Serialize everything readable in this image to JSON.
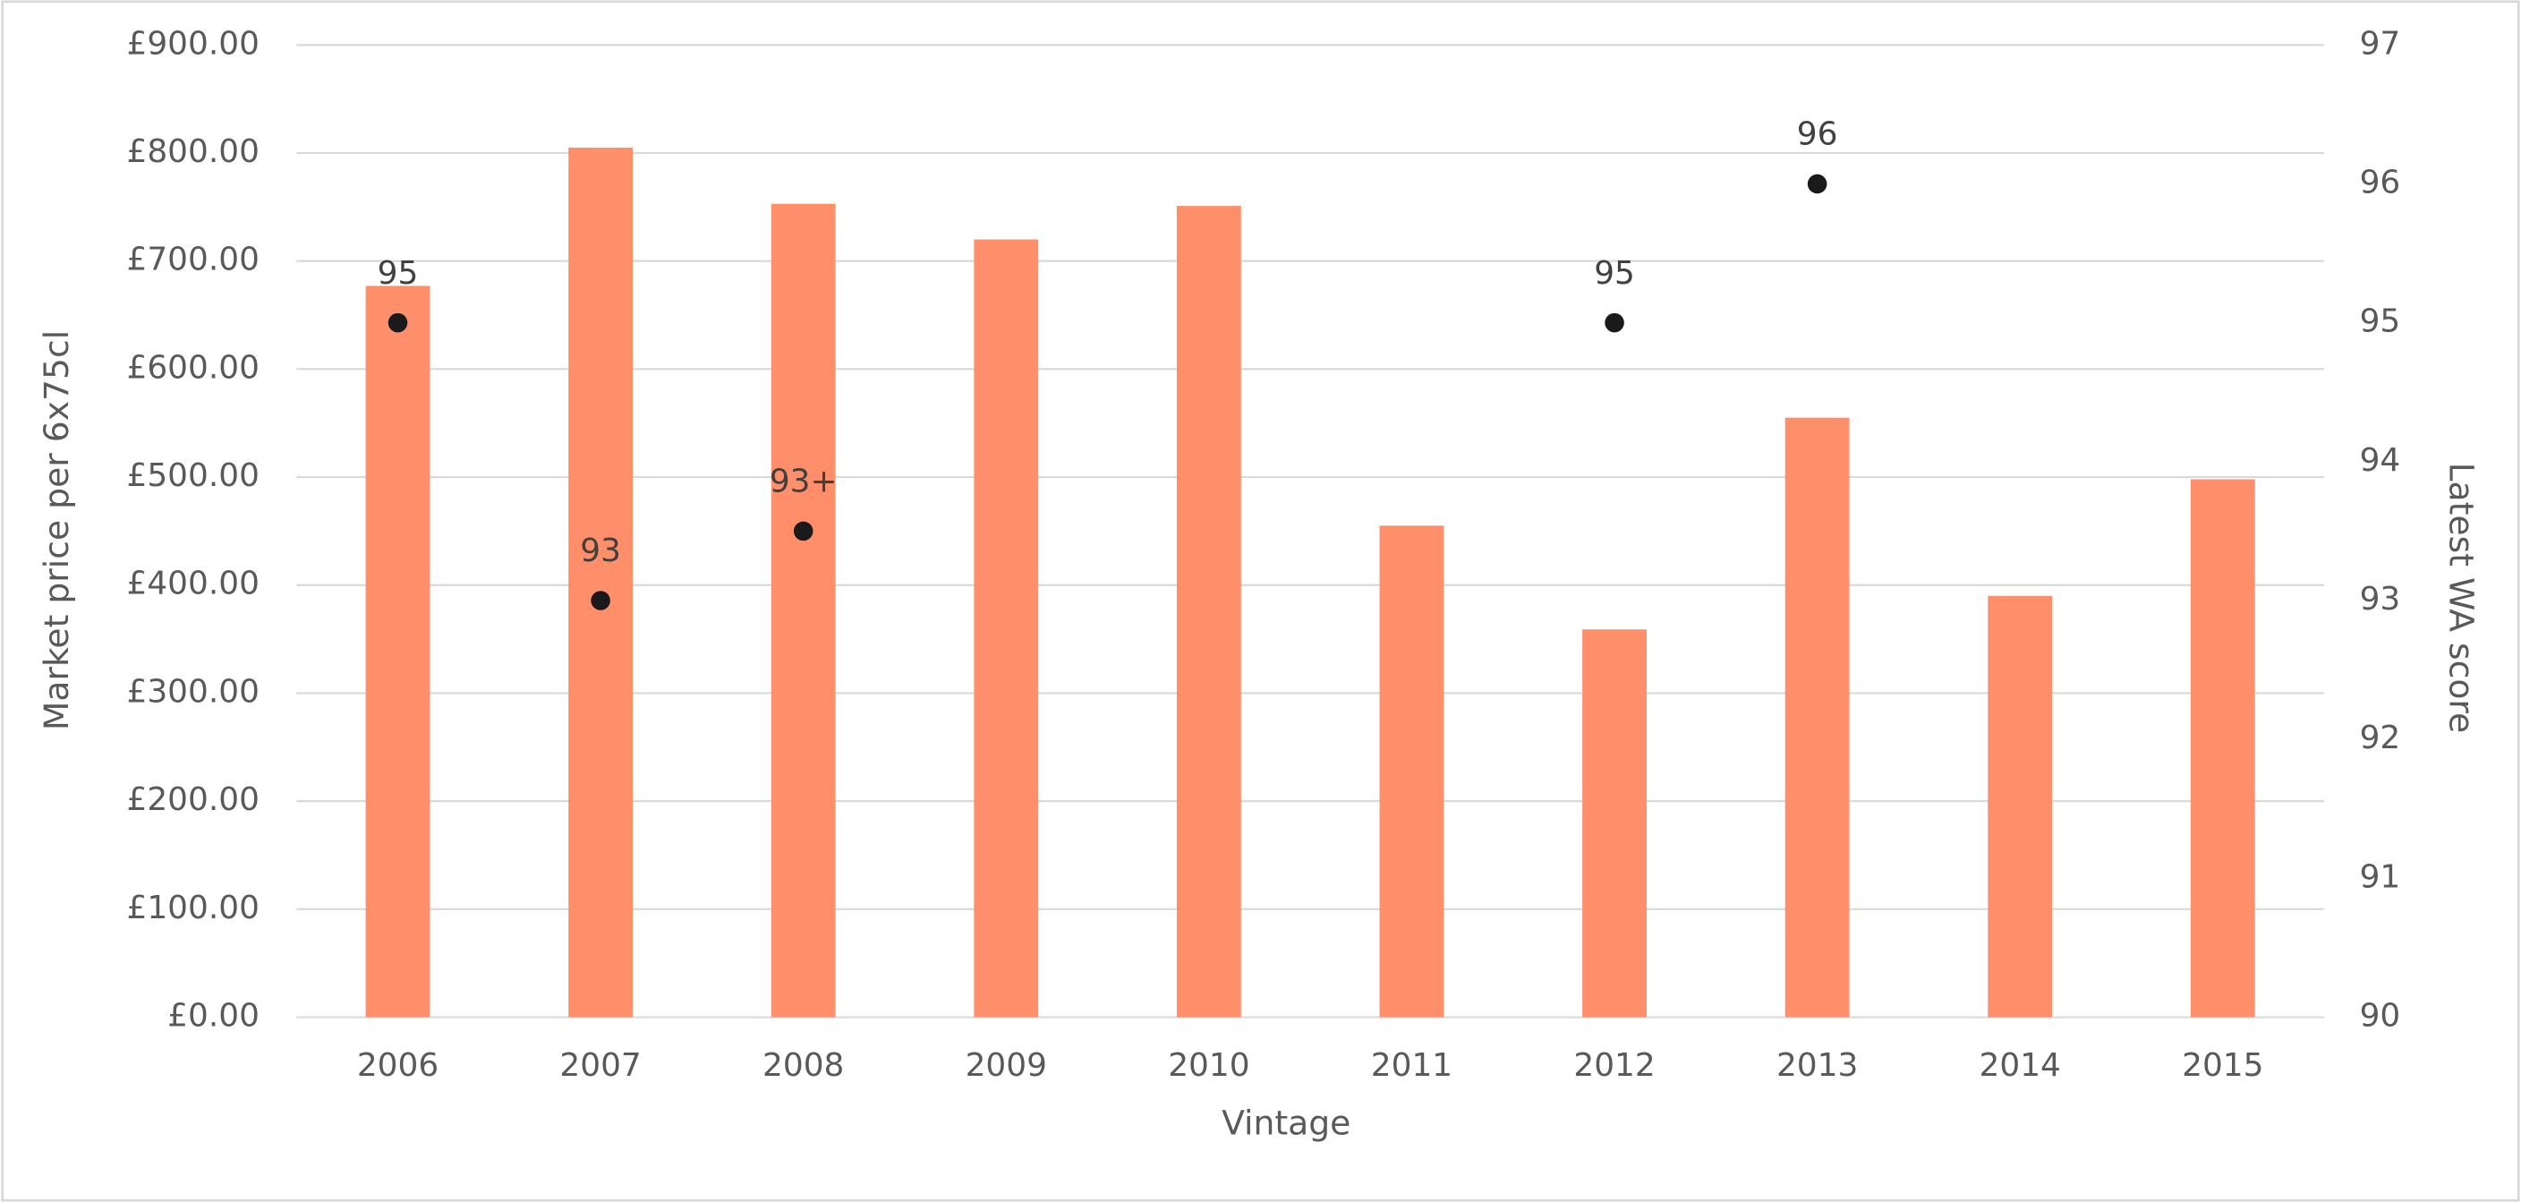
{
  "chart_data": {
    "type": "combo",
    "x_label": "Vintage",
    "y_label": "Market price per 6x75cl",
    "y2_label": "Latest WA score",
    "categories": [
      "2006",
      "2007",
      "2008",
      "2009",
      "2010",
      "2011",
      "2012",
      "2013",
      "2014",
      "2015"
    ],
    "series": [
      {
        "type": "bar",
        "color": "#ff8f6b",
        "values": [
          677,
          805,
          753,
          720,
          751,
          455,
          359,
          555,
          390,
          498
        ]
      },
      {
        "type": "scatter",
        "axis": "y2",
        "color": "#1a1a1a",
        "values": [
          95,
          93,
          93.5,
          null,
          null,
          null,
          95,
          96,
          null,
          null
        ],
        "value_labels": [
          "95",
          "93",
          "93+",
          null,
          null,
          null,
          "95",
          "96",
          null,
          null
        ]
      }
    ],
    "ylim": [
      0,
      900
    ],
    "yticks": [
      {
        "value": 0,
        "label": "£0.00"
      },
      {
        "value": 100,
        "label": "£100.00"
      },
      {
        "value": 200,
        "label": "£200.00"
      },
      {
        "value": 300,
        "label": "£300.00"
      },
      {
        "value": 400,
        "label": "£400.00"
      },
      {
        "value": 500,
        "label": "£500.00"
      },
      {
        "value": 600,
        "label": "£600.00"
      },
      {
        "value": 700,
        "label": "£700.00"
      },
      {
        "value": 800,
        "label": "£800.00"
      },
      {
        "value": 900,
        "label": "£900.00"
      }
    ],
    "y2lim": [
      90,
      97
    ],
    "y2ticks": [
      90,
      91,
      92,
      93,
      94,
      95,
      96,
      97
    ],
    "grid": true
  }
}
